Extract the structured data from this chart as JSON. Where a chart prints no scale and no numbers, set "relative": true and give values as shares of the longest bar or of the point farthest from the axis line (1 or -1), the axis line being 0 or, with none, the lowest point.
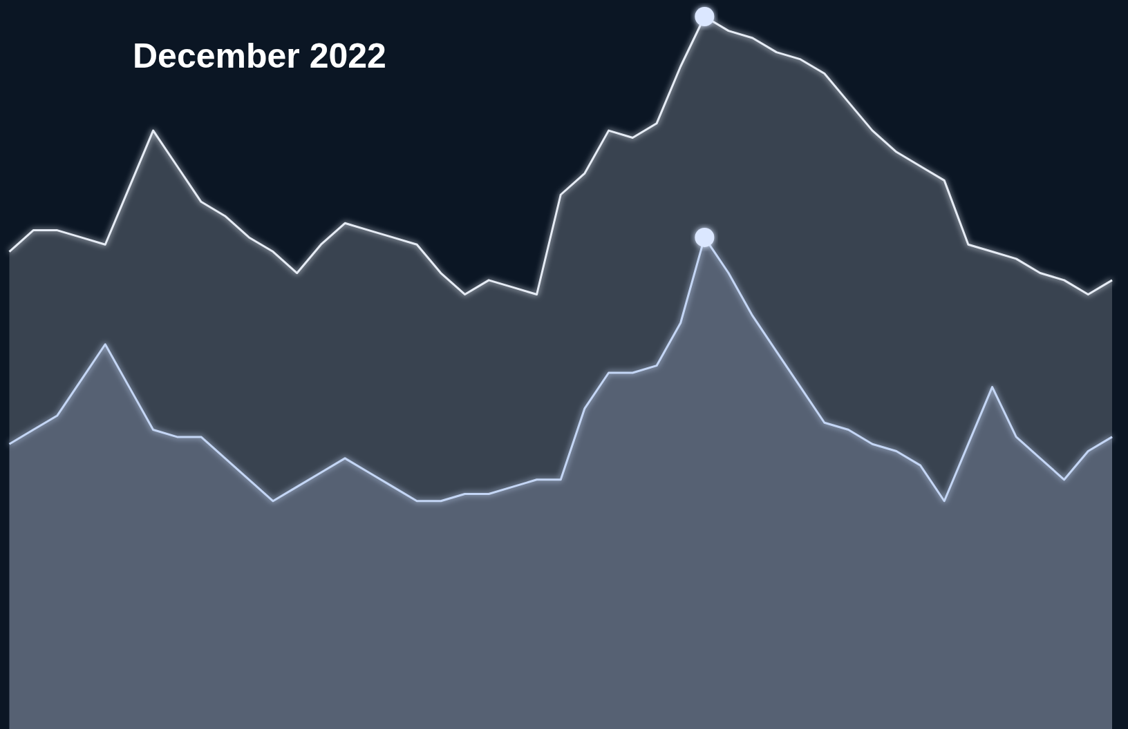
{
  "chart_data": {
    "type": "area",
    "title": "December 2022",
    "relative": true,
    "marker": "none",
    "line_style": "solid",
    "categories": [
      null,
      null,
      null,
      null,
      null,
      null,
      null,
      null,
      null,
      null,
      null,
      null,
      null,
      null,
      null,
      null,
      null,
      null,
      null,
      null,
      null,
      null,
      null,
      null,
      null,
      null,
      null,
      null,
      null,
      null,
      null,
      null,
      null,
      null,
      null,
      null,
      null,
      null,
      null,
      null,
      null,
      null,
      null,
      null,
      null,
      null,
      null
    ],
    "series": [
      {
        "color": "#e6ecf5",
        "values": [
          0.67,
          0.7,
          0.7,
          0.69,
          0.68,
          0.76,
          0.84,
          0.79,
          0.74,
          0.72,
          0.69,
          0.67,
          0.64,
          0.68,
          0.71,
          0.7,
          0.69,
          0.68,
          0.64,
          0.61,
          0.63,
          0.62,
          0.61,
          0.75,
          0.78,
          0.84,
          0.83,
          0.85,
          0.93,
          1.0,
          0.98,
          0.97,
          0.95,
          0.94,
          0.92,
          0.88,
          0.84,
          0.81,
          0.79,
          0.77,
          0.68,
          0.67,
          0.66,
          0.64,
          0.63,
          0.61,
          0.63
        ]
      },
      {
        "color": "#c4d6f5",
        "values": [
          0.4,
          0.42,
          0.44,
          0.49,
          0.54,
          0.48,
          0.42,
          0.41,
          0.41,
          0.38,
          0.35,
          0.32,
          0.34,
          0.36,
          0.38,
          0.36,
          0.34,
          0.32,
          0.32,
          0.33,
          0.33,
          0.34,
          0.35,
          0.35,
          0.45,
          0.5,
          0.5,
          0.51,
          0.57,
          0.69,
          0.64,
          0.58,
          0.53,
          0.48,
          0.43,
          0.42,
          0.4,
          0.39,
          0.37,
          0.32,
          0.4,
          0.48,
          0.41,
          0.38,
          0.35,
          0.39,
          0.41
        ]
      }
    ]
  }
}
